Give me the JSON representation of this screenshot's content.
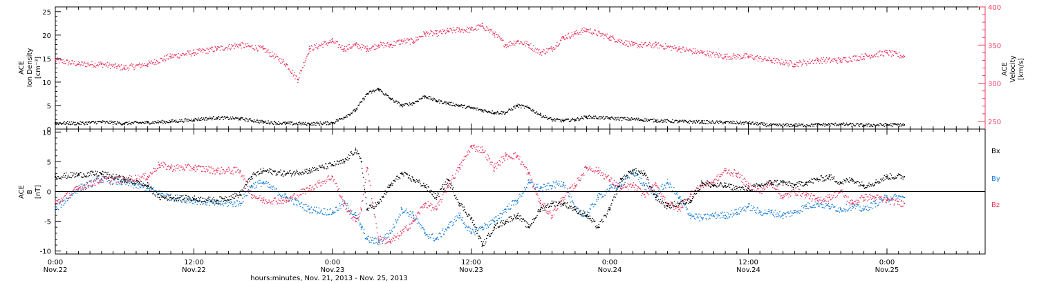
{
  "colors": {
    "black": "#000000",
    "pink": "#e8385f",
    "blue": "#1b7fd6"
  },
  "xaxis": {
    "title": "hours:minutes, Nov. 21, 2013 - Nov. 25, 2013",
    "ticks": [
      {
        "time": "0:00",
        "date": "Nov.22",
        "hour": 0
      },
      {
        "time": "12:00",
        "date": "Nov.22",
        "hour": 12
      },
      {
        "time": "0:00",
        "date": "Nov.23",
        "hour": 24
      },
      {
        "time": "12:00",
        "date": "Nov.23",
        "hour": 36
      },
      {
        "time": "0:00",
        "date": "Nov.24",
        "hour": 48
      },
      {
        "time": "12:00",
        "date": "Nov.24",
        "hour": 60
      },
      {
        "time": "0:00",
        "date": "Nov.25",
        "hour": 72
      }
    ]
  },
  "chart_data": [
    {
      "type": "scatter",
      "panel": "top",
      "xlim": [
        0,
        80.5
      ],
      "y_left": {
        "label_lines": [
          "ACE",
          "Ion Density",
          "[cm⁻³]"
        ],
        "ylim": [
          0,
          26
        ],
        "ticks": [
          "0",
          "5",
          "10",
          "15",
          "20",
          "25"
        ]
      },
      "y_right": {
        "label_lines": [
          "ACE",
          "Velocity",
          "[km/s]"
        ],
        "ylim": [
          240,
          400
        ],
        "ticks": [
          "250",
          "300",
          "350",
          "400"
        ]
      },
      "series": [
        {
          "axis": "left",
          "color": "#000000",
          "x": [
            0,
            2,
            4,
            6,
            8,
            10,
            12,
            14,
            16,
            18,
            20,
            22,
            24,
            25,
            26,
            27,
            28,
            29,
            30,
            31,
            32,
            33,
            34,
            35,
            36,
            37,
            38,
            39,
            40,
            41,
            42,
            43,
            44,
            45,
            46,
            48,
            50,
            52,
            54,
            56,
            58,
            60,
            62,
            64,
            66,
            68,
            70,
            72,
            73.5
          ],
          "y": [
            1.3,
            1.2,
            1.5,
            1.2,
            1.4,
            1.6,
            2.0,
            2.4,
            2.2,
            1.5,
            1.2,
            1.1,
            1.3,
            2.5,
            4.0,
            7.5,
            8.5,
            6.5,
            5.0,
            5.5,
            7.0,
            6.0,
            5.5,
            5.0,
            4.5,
            4.0,
            3.5,
            3.5,
            5.0,
            4.5,
            3.0,
            2.0,
            1.8,
            2.0,
            2.6,
            2.3,
            2.1,
            1.8,
            1.6,
            1.5,
            1.4,
            1.3,
            0.8,
            0.8,
            0.9,
            1.0,
            0.8,
            0.9,
            0.9
          ]
        },
        {
          "axis": "right",
          "color": "#e8385f",
          "x": [
            0,
            2,
            4,
            6,
            8,
            10,
            12,
            14,
            16,
            18,
            20,
            21,
            22,
            24,
            25,
            26,
            27,
            28,
            29,
            30,
            31,
            32,
            33,
            34,
            35,
            36,
            37,
            38,
            39,
            40,
            41,
            42,
            43,
            44,
            45,
            46,
            48,
            50,
            52,
            54,
            56,
            58,
            60,
            62,
            64,
            66,
            68,
            70,
            72,
            73.5
          ],
          "y": [
            330,
            325,
            325,
            320,
            325,
            335,
            340,
            345,
            350,
            345,
            325,
            305,
            345,
            355,
            345,
            350,
            345,
            350,
            350,
            355,
            355,
            365,
            365,
            368,
            370,
            370,
            375,
            365,
            350,
            355,
            350,
            340,
            345,
            360,
            365,
            370,
            360,
            350,
            350,
            345,
            340,
            335,
            335,
            330,
            325,
            330,
            330,
            335,
            340,
            335
          ]
        }
      ]
    },
    {
      "type": "scatter",
      "panel": "bottom",
      "xlim": [
        0,
        80.5
      ],
      "y_left": {
        "label_lines": [
          "ACE",
          "B",
          "[nT]"
        ],
        "ylim": [
          -10.5,
          10.5
        ],
        "ticks": [
          "-10",
          "-5",
          "0",
          "5",
          "10"
        ]
      },
      "zero_line": 0,
      "series": [
        {
          "name": "Bx",
          "color": "#000000",
          "x": [
            0,
            2,
            4,
            6,
            8,
            9,
            10,
            12,
            14,
            16,
            17,
            18,
            20,
            22,
            24,
            25,
            26,
            26.5,
            27,
            28,
            29,
            30,
            31,
            32,
            33,
            34,
            35,
            36,
            37,
            38,
            39,
            40,
            41,
            42,
            43,
            44,
            45,
            46,
            47,
            48,
            49,
            50,
            51,
            52,
            53,
            54,
            55,
            56,
            57,
            58,
            59,
            60,
            61,
            62,
            63,
            64,
            65,
            66,
            67,
            68,
            69,
            70,
            71,
            72,
            73.5
          ],
          "y": [
            2.5,
            2.8,
            3.0,
            2.0,
            1.0,
            -1.0,
            -1.0,
            -1.2,
            -1.5,
            -0.5,
            2.5,
            3.5,
            3.0,
            3.5,
            4.5,
            5.0,
            7.0,
            5.0,
            -3.0,
            -2.0,
            1.0,
            3.0,
            2.0,
            1.0,
            -1.0,
            2.0,
            -2.0,
            -4.5,
            -9.0,
            -6.0,
            -5.0,
            -4.0,
            -6.0,
            -3.0,
            -2.0,
            -2.0,
            -3.0,
            -4.0,
            -6.0,
            -3.0,
            2.0,
            3.5,
            3.0,
            -1.0,
            -2.5,
            -2.0,
            -1.5,
            1.5,
            1.0,
            1.0,
            0.5,
            0.5,
            1.0,
            1.5,
            1.5,
            1.0,
            1.5,
            2.0,
            2.5,
            1.5,
            2.0,
            1.0,
            1.5,
            2.5,
            2.5
          ]
        },
        {
          "name": "By",
          "color": "#1b7fd6",
          "x": [
            0,
            2,
            4,
            6,
            8,
            10,
            12,
            14,
            16,
            17,
            18,
            20,
            22,
            24,
            25,
            26,
            26.5,
            27,
            28,
            29,
            30,
            31,
            32,
            33,
            34,
            35,
            36,
            37,
            38,
            39,
            40,
            41,
            42,
            43,
            44,
            45,
            46,
            47,
            48,
            49,
            50,
            51,
            52,
            53,
            54,
            55,
            56,
            57,
            58,
            59,
            60,
            61,
            62,
            63,
            64,
            65,
            66,
            67,
            68,
            69,
            70,
            71,
            72,
            73.5
          ],
          "y": [
            -3.0,
            0.5,
            2.0,
            1.5,
            0.5,
            -1.0,
            -1.5,
            -2.0,
            -2.0,
            1.0,
            1.5,
            -1.0,
            -3.0,
            -3.5,
            -2.0,
            -4.0,
            -6.0,
            -8.0,
            -8.5,
            -7.0,
            -3.0,
            -4.0,
            -7.0,
            -8.0,
            -6.0,
            -4.0,
            -7.0,
            -6.0,
            -5.0,
            -3.0,
            -1.5,
            1.5,
            0.5,
            1.0,
            1.5,
            -3.0,
            -4.0,
            -1.0,
            0.5,
            1.0,
            3.5,
            1.0,
            -0.5,
            1.5,
            -1.0,
            -4.0,
            -4.5,
            -4.0,
            -4.0,
            -3.5,
            -2.5,
            -3.5,
            -3.5,
            -4.0,
            -3.5,
            -2.5,
            -2.0,
            -2.5,
            -3.0,
            -2.5,
            -3.0,
            -2.0,
            -1.0,
            -1.0
          ]
        },
        {
          "name": "Bz",
          "color": "#e8385f",
          "x": [
            0,
            2,
            4,
            6,
            8,
            9,
            10,
            12,
            14,
            16,
            17,
            18,
            20,
            22,
            24,
            25,
            26,
            26.5,
            27,
            28,
            29,
            30,
            31,
            32,
            33,
            34,
            35,
            36,
            37,
            38,
            39,
            40,
            41,
            42,
            43,
            44,
            45,
            46,
            47,
            48,
            49,
            50,
            51,
            52,
            53,
            54,
            55,
            56,
            57,
            58,
            59,
            60,
            61,
            62,
            63,
            64,
            65,
            66,
            67,
            68,
            69,
            70,
            71,
            72,
            73.5
          ],
          "y": [
            -2.0,
            0.5,
            2.0,
            2.0,
            2.5,
            4.5,
            4.0,
            4.0,
            3.5,
            3.5,
            -0.5,
            -1.5,
            -1.5,
            0.5,
            2.5,
            -2.0,
            -5.0,
            -3.0,
            4.0,
            -8.0,
            -8.5,
            -7.0,
            -5.0,
            -2.0,
            -3.0,
            1.0,
            4.0,
            7.5,
            7.0,
            4.0,
            6.0,
            6.0,
            3.0,
            -2.0,
            -4.0,
            -1.0,
            1.0,
            4.0,
            3.5,
            2.0,
            0.5,
            1.0,
            -0.5,
            1.0,
            -2.0,
            -3.0,
            -0.5,
            1.0,
            1.5,
            3.5,
            3.0,
            1.0,
            0.0,
            1.5,
            -1.0,
            0.0,
            -0.5,
            -1.5,
            -1.0,
            0.0,
            -2.0,
            -1.0,
            -1.0,
            -1.5,
            -2.0
          ]
        }
      ]
    }
  ]
}
